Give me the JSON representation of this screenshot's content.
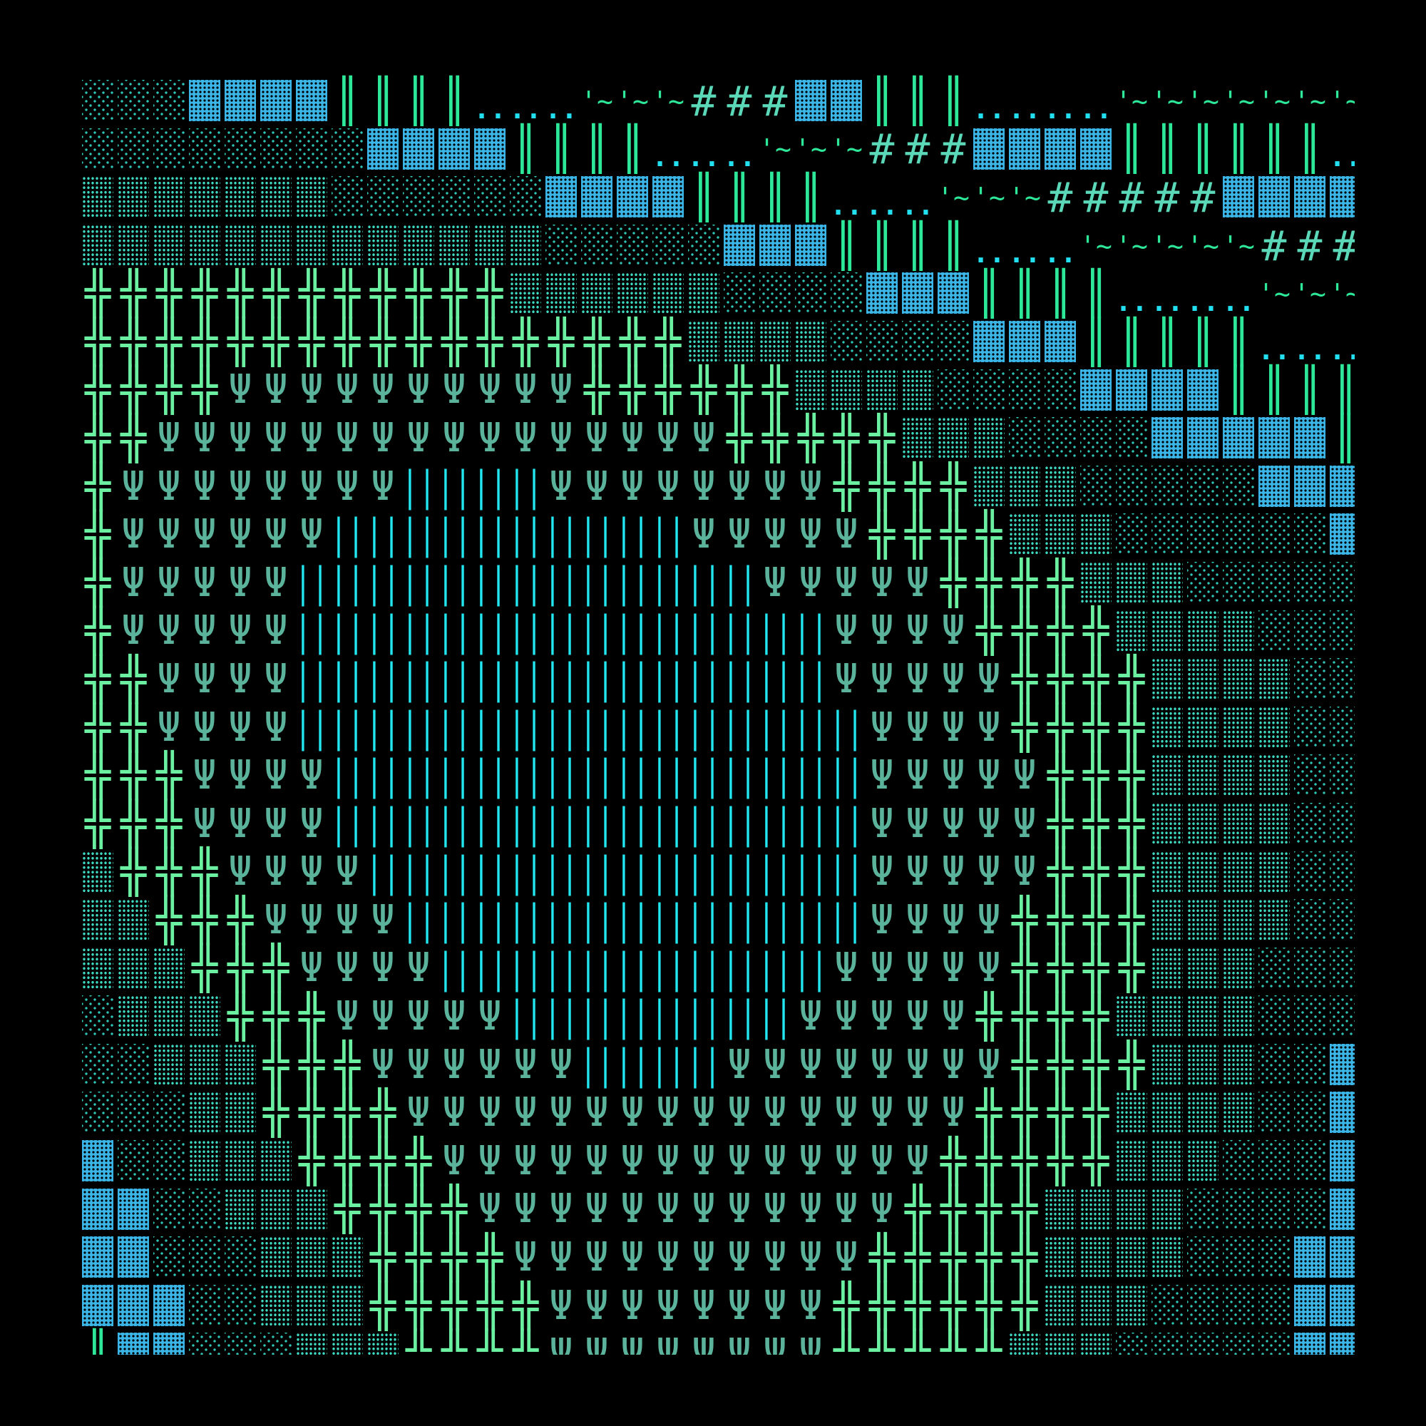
{
  "palette": {
    "background": "#000000",
    "light_shade": "#2ec8b8",
    "medium_shade": "#3ed8c0",
    "dense_block": "#3bb4e6",
    "double_bar": "#2ee89a",
    "dots": "#22e0f0",
    "tilde": "#2ee89a",
    "hash": "#5ad8b8",
    "cross": "#6af0a0",
    "psi": "#5ab39a",
    "bars": "#22e6f0"
  },
  "glyphs": {
    ".": {
      "kind": "light-shade",
      "char": "░"
    },
    ":": {
      "kind": "medium-shade",
      "char": "▒"
    },
    "B": {
      "kind": "dense-block",
      "char": "▓"
    },
    "H": {
      "kind": "double-bar",
      "char": "║"
    },
    "o": {
      "kind": "dots",
      "char": ".."
    },
    "~": {
      "kind": "tilde",
      "char": "'~"
    },
    "#": {
      "kind": "hash",
      "char": "#"
    },
    "+": {
      "kind": "cross",
      "char": "╬"
    },
    "Y": {
      "kind": "psi",
      "char": "Ψ"
    },
    "I": {
      "kind": "bars",
      "char": "| |"
    }
  },
  "rows": [
    "...BBBBHHHHooo~~~###BBHHHoooo~~~~~~~",
    "........BBBBHHHHooo~~~###BBBBHHHHHHo",
    ":::::::......BBBBHHHHooo~~~#####BBBB",
    ":::::::::::::.....BBBHHHHooo~~~~~###",
    "++++++++++++::::::....BBBHHHHoooo~~~",
    "+++++++++++++++++::::....BBBHHHHHooo",
    "++++YYYYYYYYYY++++++::::....BBBBHHHH",
    "++YYYYYYYYYYYYYYYY+++++:::....BBBBBH",
    "+YYYYYYYYIIIIYYYYYYYY++++:::.....BBB",
    "+YYYYYYIIIIIIIIIIYYYYY++++:::......B",
    "+YYYYYIIIIIIIIIIIIIYYYYY++++:::.....",
    "+YYYYYIIIIIIIIIIIIIIIYYYY++++::::...",
    "++YYYYIIIIIIIIIIIIIIIYYYYY++++::::..",
    "++YYYYIIIIIIIIIIIIIIIIYYYY++++::::..",
    "+++YYYYIIIIIIIIIIIIIIIYYYYY+++::::..",
    "+++YYYYIIIIIIIIIIIIIIIYYYYY+++::::..",
    ":+++YYYYIIIIIIIIIIIIIIYYYYY+++::::..",
    "::+++YYYYIIIIIIIIIIIIIYYYY++++::::..",
    ":::+++YYYYIIIIIIIIIIIYYYYY++++:::...",
    ".:::+++YYYYYIIIIIIIIYYYYY++++::::...",
    "..:::+++YYYYYYIIIIYYYYYYYY++++:::..B",
    "...::++++YYYYYYYYYYYYYYYY++++::::..B",
    "B..:::++++YYYYYYYYYYYYYY+++++:::...B",
    "BB..:::++++YYYYYYYYYYYY++++::::....B",
    "BB...:::++++YYYYYYYYYY+++++::::...BB",
    "BBB..:::+++++YYYYYYYY++++++:::....BB",
    "HBB...:::++++YYYYYYYY+++++:::.....BB"
  ]
}
